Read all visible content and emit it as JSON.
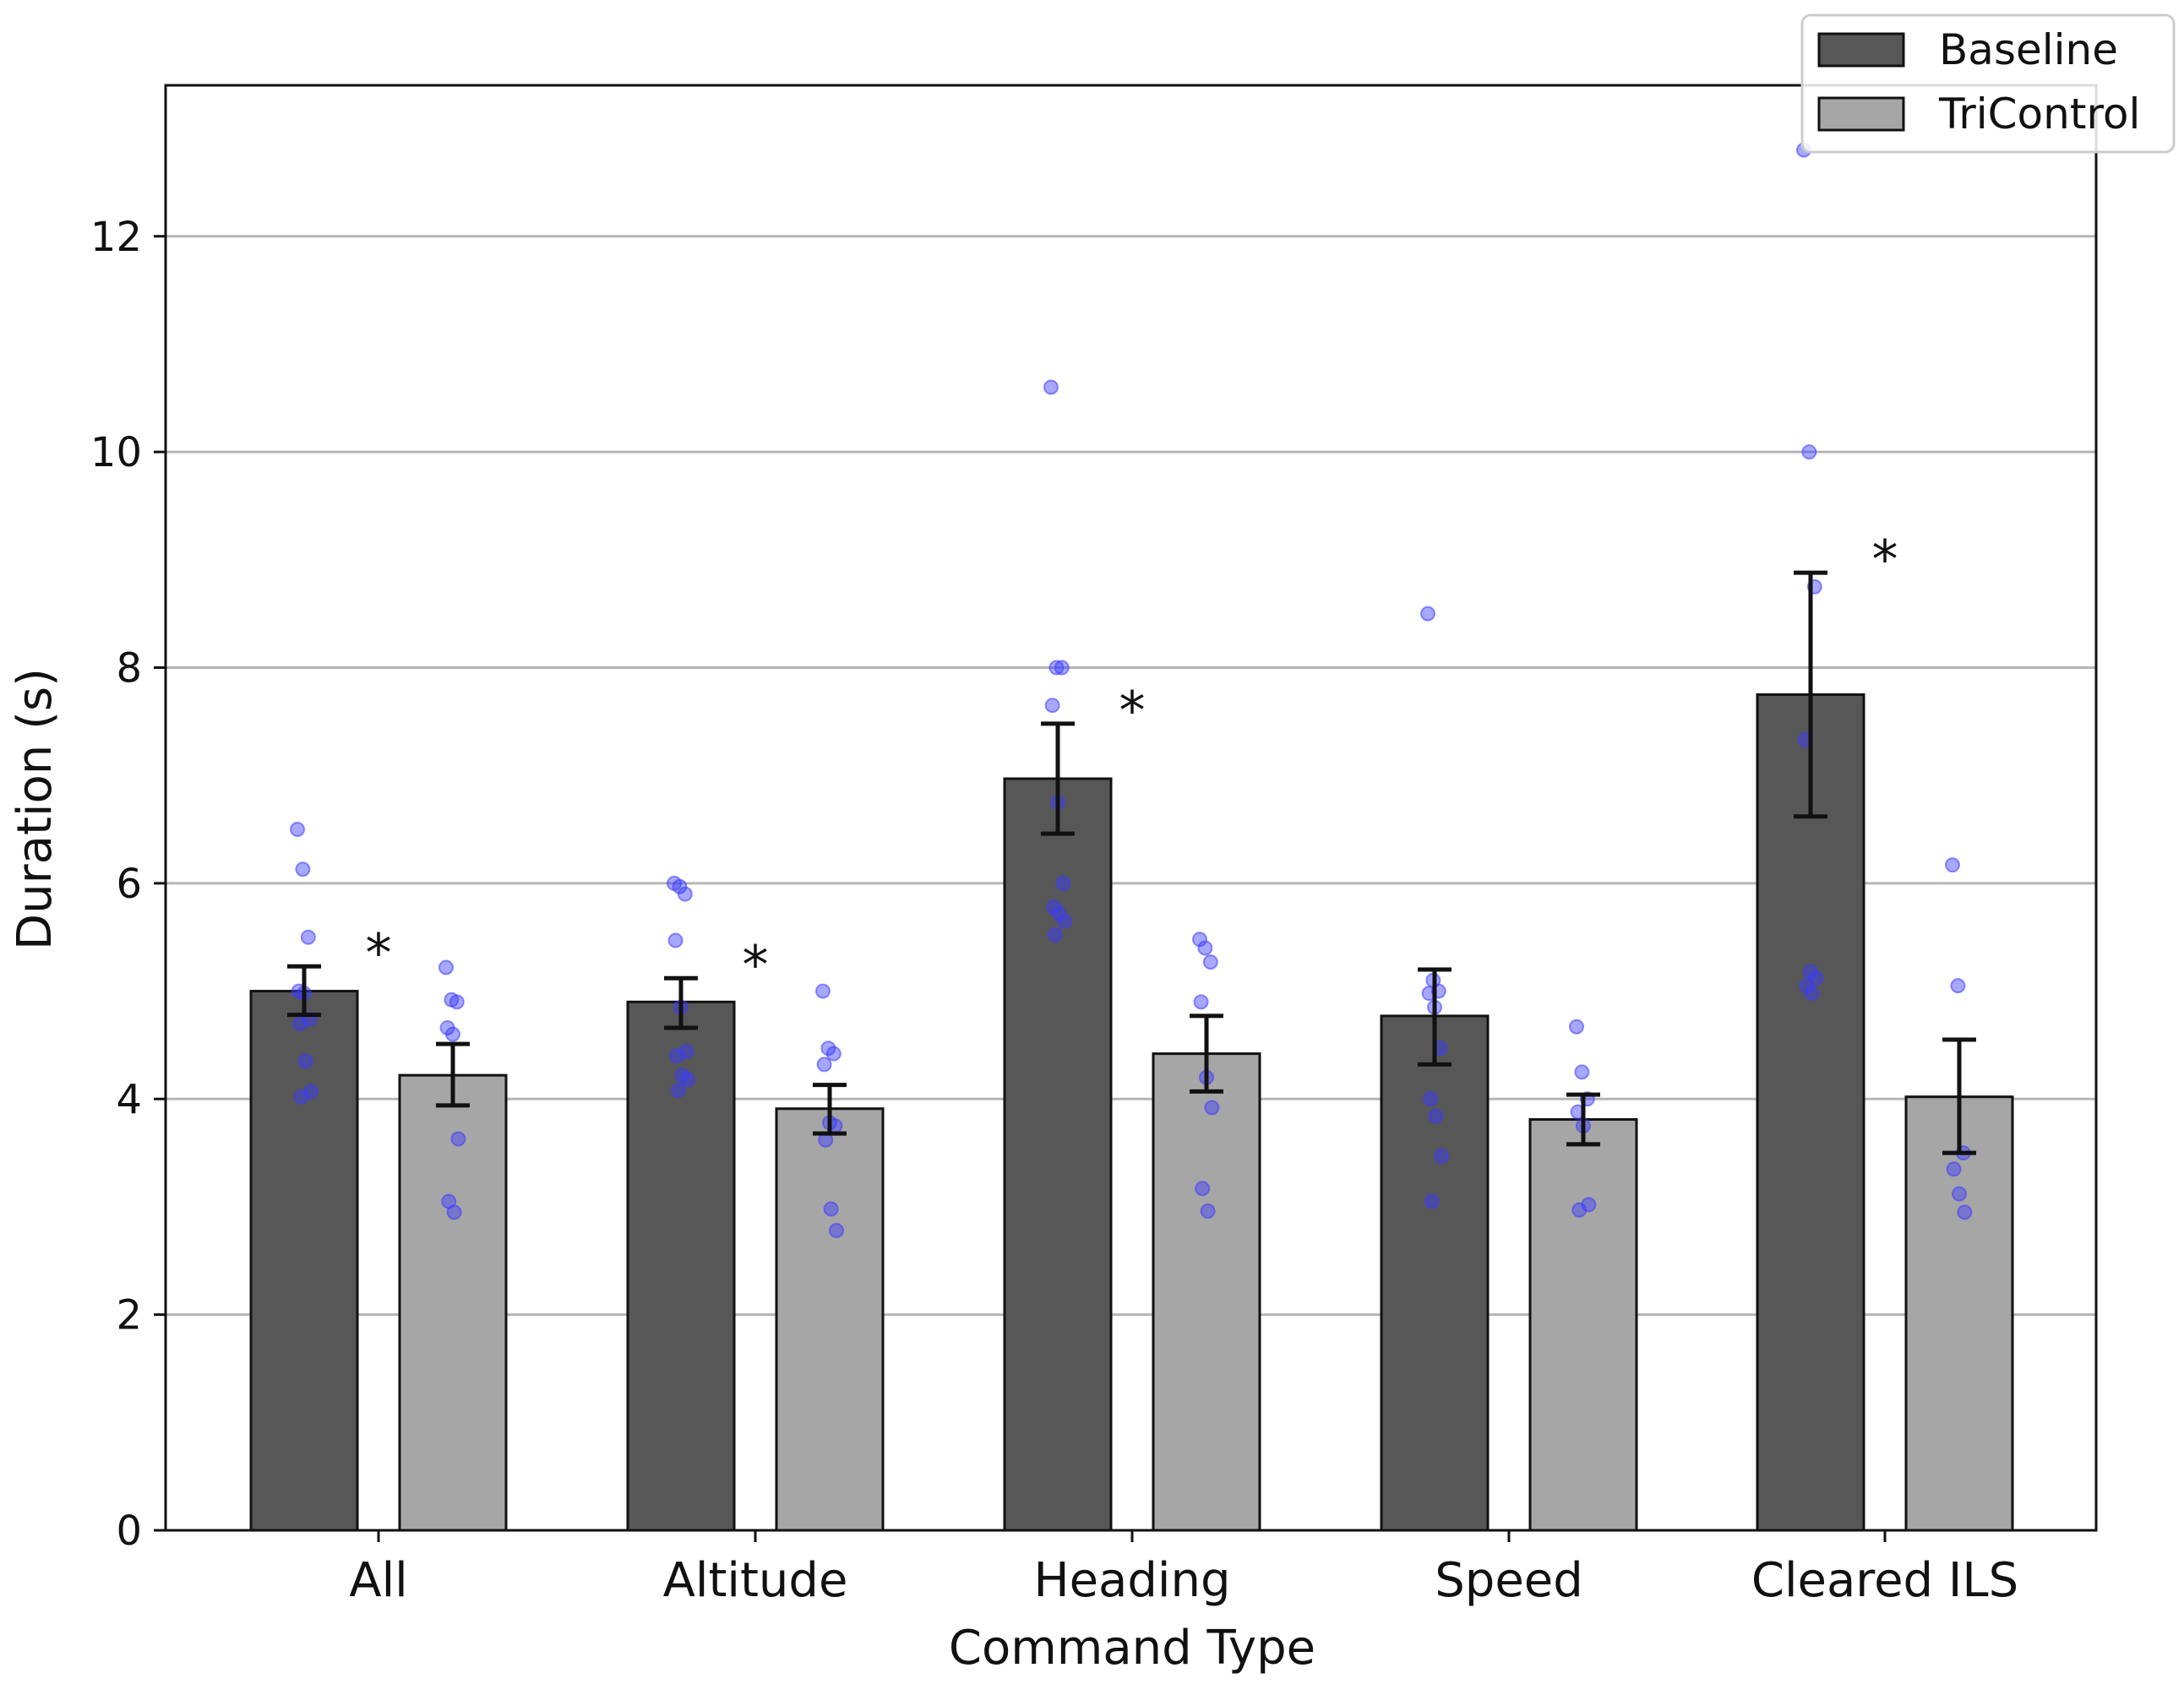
{
  "chart_data": {
    "type": "bar",
    "title": "",
    "xlabel": "Command Type",
    "ylabel": "Duration (s)",
    "ylim": [
      0,
      13.4
    ],
    "yticks": [
      0,
      2,
      4,
      6,
      8,
      10,
      12
    ],
    "grid": "horizontal",
    "legend_position": "top-right",
    "categories": [
      "All",
      "Altitude",
      "Heading",
      "Speed",
      "Cleared ILS"
    ],
    "series": [
      {
        "name": "Baseline",
        "color": "#575757",
        "values": [
          5.0,
          4.9,
          6.97,
          4.77,
          7.75
        ],
        "err_low": [
          4.78,
          4.66,
          6.46,
          4.32,
          6.62
        ],
        "err_high": [
          5.23,
          5.12,
          7.48,
          5.2,
          8.88
        ],
        "points": [
          [
            6.5,
            6.13,
            5.5,
            5.0,
            4.98,
            4.74,
            4.7,
            4.35,
            4.07,
            4.02
          ],
          [
            6.0,
            5.97,
            5.9,
            5.47,
            4.85,
            4.44,
            4.4,
            4.22,
            4.18,
            4.08
          ],
          [
            10.6,
            8.0,
            8.0,
            7.65,
            6.75,
            6.0,
            5.78,
            5.72,
            5.65,
            5.52
          ],
          [
            8.5,
            5.1,
            5.0,
            4.98,
            4.85,
            4.47,
            4.0,
            3.84,
            3.47,
            3.05
          ],
          [
            12.8,
            10.0,
            8.75,
            7.33,
            5.18,
            5.12,
            5.05,
            4.98
          ]
        ]
      },
      {
        "name": "TriControl",
        "color": "#a6a6a6",
        "values": [
          4.22,
          3.91,
          4.42,
          3.81,
          4.02
        ],
        "err_low": [
          3.94,
          3.68,
          4.07,
          3.58,
          3.5
        ],
        "err_high": [
          4.51,
          4.13,
          4.77,
          4.04,
          4.55
        ],
        "points": [
          [
            5.22,
            4.92,
            4.9,
            4.66,
            4.6,
            3.63,
            3.05,
            2.95
          ],
          [
            5.0,
            4.47,
            4.42,
            4.32,
            3.78,
            3.75,
            3.62,
            2.98,
            2.78
          ],
          [
            5.48,
            5.4,
            5.27,
            4.9,
            4.2,
            3.92,
            3.17,
            2.96
          ],
          [
            4.67,
            4.25,
            4.0,
            3.88,
            3.75,
            3.02,
            2.97
          ],
          [
            6.17,
            5.05,
            3.5,
            3.35,
            3.12,
            2.95
          ]
        ]
      }
    ],
    "point_color": "#3b3bff",
    "significance_marker": "*",
    "significant": [
      true,
      true,
      true,
      false,
      true
    ]
  }
}
